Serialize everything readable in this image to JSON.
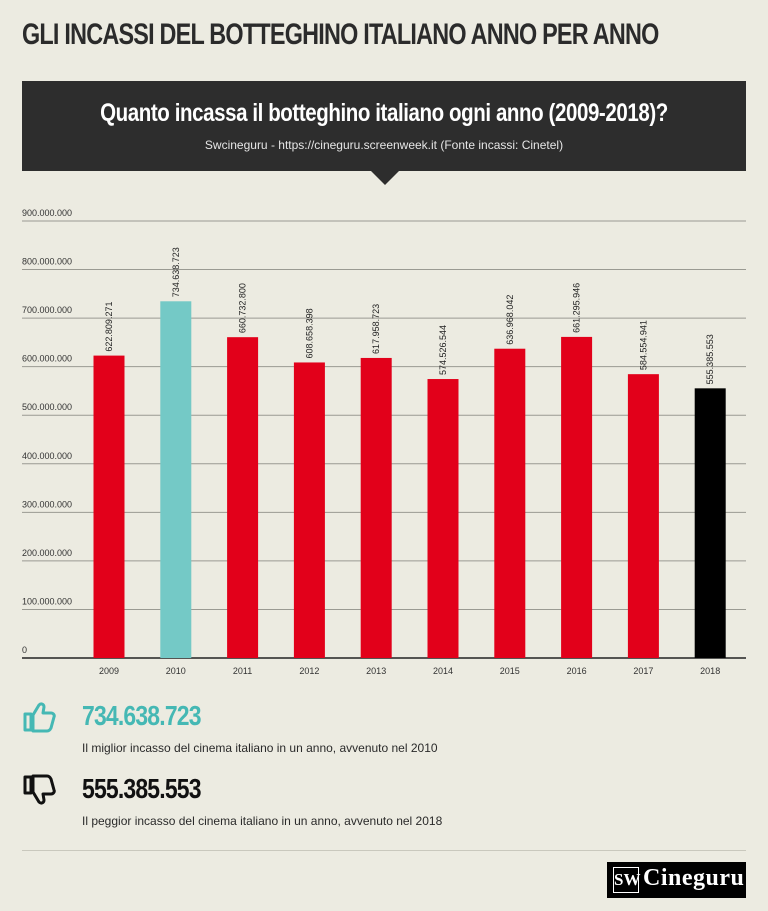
{
  "page_title": "GLI INCASSI DEL BOTTEGHINO ITALIANO ANNO PER ANNO",
  "colors": {
    "background": "#ecebe1",
    "banner": "#2d2d2d",
    "bar_default": "#e2001a",
    "bar_best": "#74c9c6",
    "bar_worst": "#000000",
    "best_value": "#45b8b4",
    "grid": "#9a9a92"
  },
  "chart_data": {
    "type": "bar",
    "title": "Quanto incassa il botteghino italiano ogni anno (2009-2018)?",
    "subtitle": "Swcineguru - https://cineguru.screenweek.it (Fonte incassi: Cinetel)",
    "xlabel": "",
    "ylabel": "",
    "ylim": [
      0,
      900000000
    ],
    "grid": true,
    "y_ticks": [
      0,
      100000000,
      200000000,
      300000000,
      400000000,
      500000000,
      600000000,
      700000000,
      800000000,
      900000000
    ],
    "y_tick_labels": [
      "0",
      "100.000.000",
      "200.000.000",
      "300.000.000",
      "400.000.000",
      "500.000.000",
      "600.000.000",
      "700.000.000",
      "800.000.000",
      "900.000.000"
    ],
    "categories": [
      "2009",
      "2010",
      "2011",
      "2012",
      "2013",
      "2014",
      "2015",
      "2016",
      "2017",
      "2018"
    ],
    "values": [
      622809271,
      734638723,
      660732800,
      608658398,
      617958723,
      574526544,
      636968042,
      661295946,
      584554941,
      555385553
    ],
    "value_labels": [
      "622.809.271",
      "734.638.723",
      "660.732.800",
      "608.658.398",
      "617.958.723",
      "574.526.544",
      "636.968.042",
      "661.295.946",
      "584.554.941",
      "555.385.553"
    ],
    "highlight": {
      "best": "2010",
      "worst": "2018"
    }
  },
  "stats": {
    "best": {
      "value": "734.638.723",
      "description": "Il miglior incasso del cinema italiano in un anno, avvenuto nel 2010",
      "icon": "thumbs-up-icon"
    },
    "worst": {
      "value": "555.385.553",
      "description": "Il peggior incasso del cinema italiano in un anno, avvenuto nel 2018",
      "icon": "thumbs-down-icon"
    }
  },
  "logo": {
    "mark": "SW",
    "text": "Cineguru"
  }
}
